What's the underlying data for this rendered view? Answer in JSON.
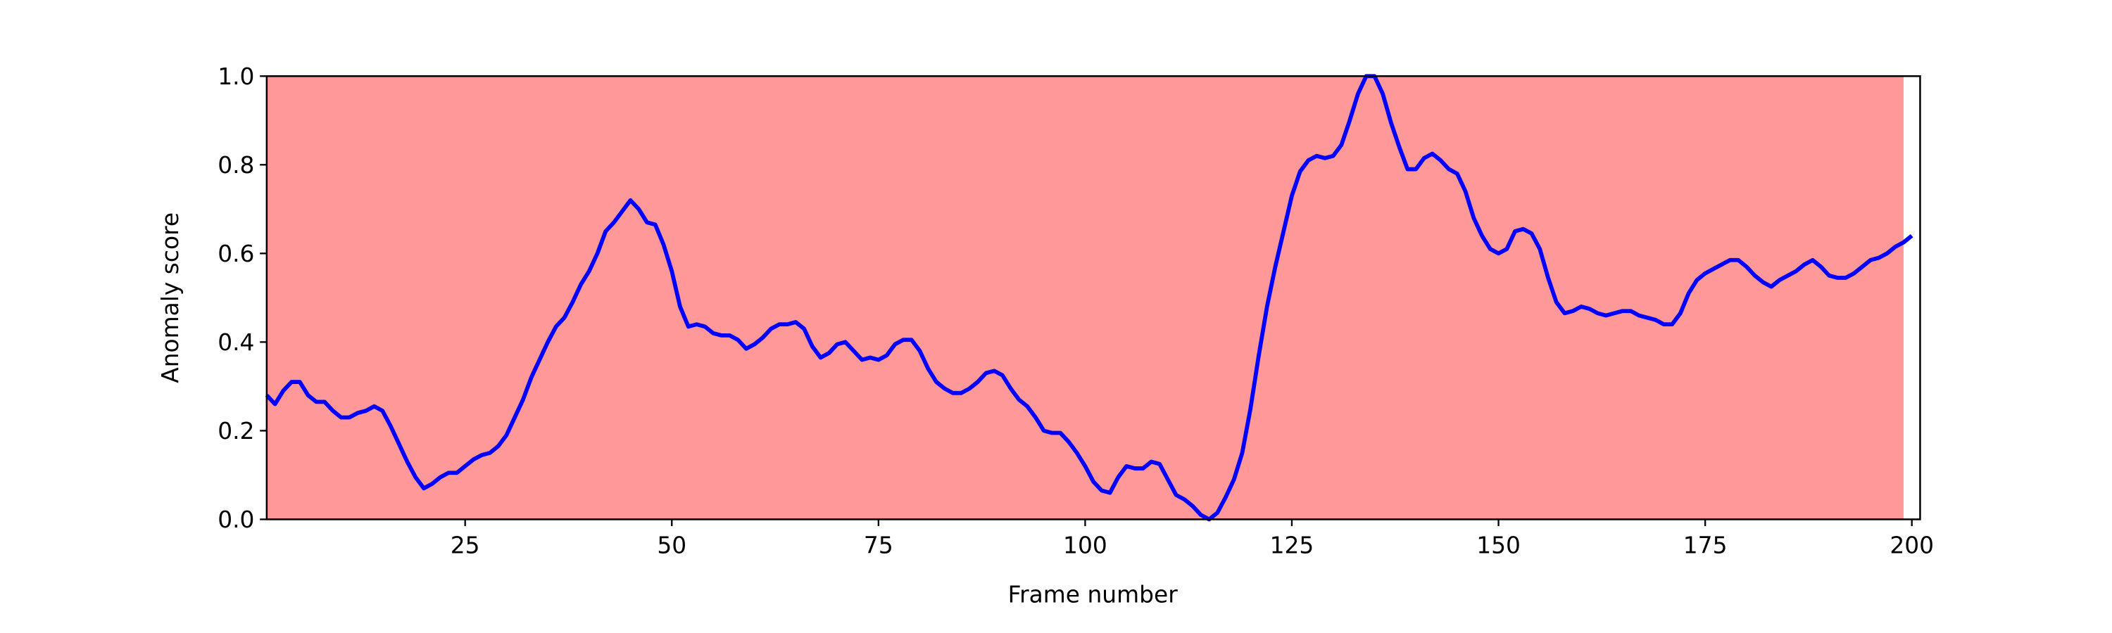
{
  "chart_data": {
    "type": "line",
    "xlabel": "Frame number",
    "ylabel": "Anomaly score",
    "xlim": [
      1,
      201
    ],
    "ylim": [
      0,
      1
    ],
    "xticks": [
      25,
      50,
      75,
      100,
      125,
      150,
      175,
      200
    ],
    "yticks": [
      {
        "value": 0,
        "label": "0.0"
      },
      0.2,
      0.4,
      0.6,
      0.8,
      {
        "value": 1,
        "label": "1.0"
      }
    ],
    "span": [
      1,
      199
    ],
    "span_color": "#ff9999",
    "x": [
      1,
      2,
      3,
      4,
      5,
      6,
      7,
      8,
      9,
      10,
      11,
      12,
      13,
      14,
      15,
      16,
      17,
      18,
      19,
      20,
      21,
      22,
      23,
      24,
      25,
      26,
      27,
      28,
      29,
      30,
      31,
      32,
      33,
      34,
      35,
      36,
      37,
      38,
      39,
      40,
      41,
      42,
      43,
      44,
      45,
      46,
      47,
      48,
      49,
      50,
      51,
      52,
      53,
      54,
      55,
      56,
      57,
      58,
      59,
      60,
      61,
      62,
      63,
      64,
      65,
      66,
      67,
      68,
      69,
      70,
      71,
      72,
      73,
      74,
      75,
      76,
      77,
      78,
      79,
      80,
      81,
      82,
      83,
      84,
      85,
      86,
      87,
      88,
      89,
      90,
      91,
      92,
      93,
      94,
      95,
      96,
      97,
      98,
      99,
      100,
      101,
      102,
      103,
      104,
      105,
      106,
      107,
      108,
      109,
      110,
      111,
      112,
      113,
      114,
      115,
      116,
      117,
      118,
      119,
      120,
      121,
      122,
      123,
      124,
      125,
      126,
      127,
      128,
      129,
      130,
      131,
      132,
      133,
      134,
      135,
      136,
      137,
      138,
      139,
      140,
      141,
      142,
      143,
      144,
      145,
      146,
      147,
      148,
      149,
      150,
      151,
      152,
      153,
      154,
      155,
      156,
      157,
      158,
      159,
      160,
      161,
      162,
      163,
      164,
      165,
      166,
      167,
      168,
      169,
      170,
      171,
      172,
      173,
      174,
      175,
      176,
      177,
      178,
      179,
      180,
      181,
      182,
      183,
      184,
      185,
      186,
      187,
      188,
      189,
      190,
      191,
      192,
      193,
      194,
      195,
      196,
      197,
      198,
      199,
      200
    ],
    "series": [
      {
        "color": "#0000ff",
        "values": [
          0.28,
          0.26,
          0.29,
          0.31,
          0.31,
          0.28,
          0.265,
          0.265,
          0.245,
          0.23,
          0.23,
          0.24,
          0.245,
          0.255,
          0.245,
          0.21,
          0.17,
          0.13,
          0.095,
          0.07,
          0.08,
          0.095,
          0.105,
          0.105,
          0.12,
          0.135,
          0.145,
          0.15,
          0.165,
          0.19,
          0.23,
          0.27,
          0.32,
          0.36,
          0.4,
          0.435,
          0.455,
          0.49,
          0.53,
          0.56,
          0.6,
          0.65,
          0.67,
          0.695,
          0.72,
          0.7,
          0.67,
          0.665,
          0.62,
          0.56,
          0.48,
          0.435,
          0.44,
          0.435,
          0.42,
          0.415,
          0.415,
          0.405,
          0.385,
          0.395,
          0.41,
          0.43,
          0.44,
          0.44,
          0.445,
          0.43,
          0.39,
          0.365,
          0.375,
          0.395,
          0.4,
          0.38,
          0.36,
          0.365,
          0.36,
          0.37,
          0.395,
          0.405,
          0.405,
          0.38,
          0.34,
          0.31,
          0.295,
          0.285,
          0.285,
          0.295,
          0.31,
          0.33,
          0.335,
          0.325,
          0.295,
          0.27,
          0.255,
          0.23,
          0.2,
          0.195,
          0.195,
          0.175,
          0.15,
          0.12,
          0.085,
          0.065,
          0.06,
          0.095,
          0.12,
          0.115,
          0.115,
          0.13,
          0.125,
          0.09,
          0.055,
          0.045,
          0.03,
          0.01,
          0.0,
          0.015,
          0.05,
          0.09,
          0.15,
          0.25,
          0.37,
          0.48,
          0.57,
          0.65,
          0.73,
          0.785,
          0.81,
          0.82,
          0.815,
          0.82,
          0.845,
          0.9,
          0.96,
          1.0,
          1.0,
          0.96,
          0.895,
          0.84,
          0.79,
          0.79,
          0.815,
          0.825,
          0.81,
          0.79,
          0.78,
          0.74,
          0.68,
          0.64,
          0.61,
          0.6,
          0.61,
          0.65,
          0.655,
          0.645,
          0.61,
          0.545,
          0.49,
          0.465,
          0.47,
          0.48,
          0.475,
          0.465,
          0.46,
          0.465,
          0.47,
          0.47,
          0.46,
          0.455,
          0.45,
          0.44,
          0.44,
          0.465,
          0.51,
          0.54,
          0.555,
          0.565,
          0.575,
          0.585,
          0.585,
          0.57,
          0.55,
          0.535,
          0.525,
          0.54,
          0.55,
          0.56,
          0.575,
          0.585,
          0.57,
          0.55,
          0.545,
          0.545,
          0.555,
          0.57,
          0.585,
          0.59,
          0.6,
          0.615,
          0.625,
          0.64
        ]
      }
    ]
  }
}
